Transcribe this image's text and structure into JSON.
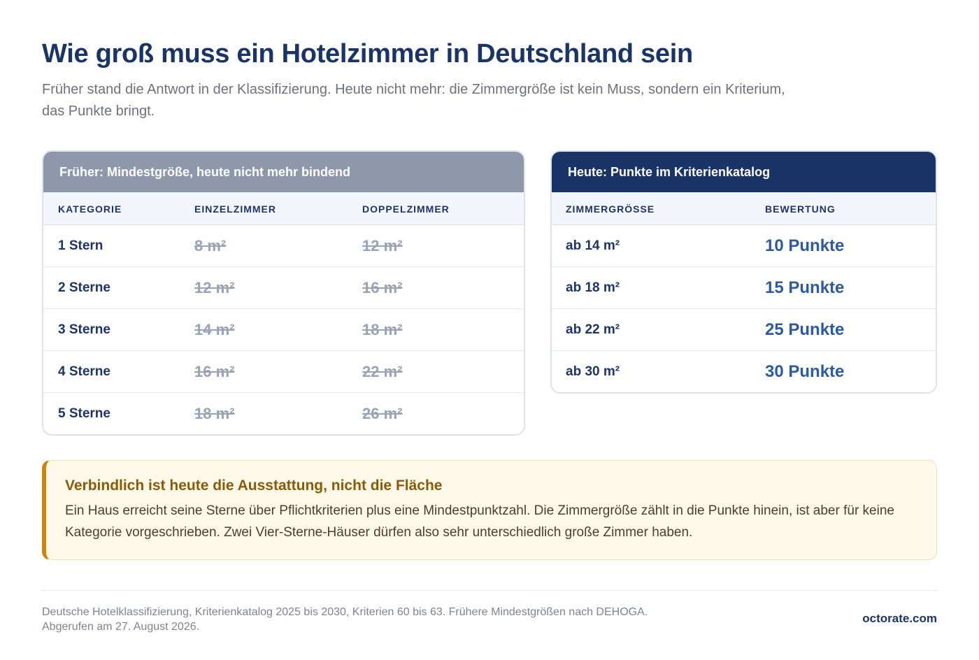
{
  "header": {
    "title": "Wie groß muss ein Hotelzimmer in Deutschland sein",
    "subtitle": "Früher stand die Antwort in der Klassifizierung. Heute nicht mehr: die Zimmergröße ist kein Muss, sondern ein Kriterium, das Punkte bringt."
  },
  "former_table": {
    "heading": "Früher: Mindestgröße, heute nicht mehr bindend",
    "columns": [
      "KATEGORIE",
      "EINZELZIMMER",
      "DOPPELZIMMER"
    ],
    "rows": [
      [
        "1 Stern",
        "8 m²",
        "12 m²"
      ],
      [
        "2 Sterne",
        "12 m²",
        "16 m²"
      ],
      [
        "3 Sterne",
        "14 m²",
        "18 m²"
      ],
      [
        "4 Sterne",
        "16 m²",
        "22 m²"
      ],
      [
        "5 Sterne",
        "18 m²",
        "26 m²"
      ]
    ]
  },
  "current_table": {
    "heading": "Heute: Punkte im Kriterienkatalog",
    "columns": [
      "ZIMMERGRÖSSE",
      "BEWERTUNG"
    ],
    "rows": [
      [
        "ab 14 m²",
        "10 Punkte"
      ],
      [
        "ab 18 m²",
        "15 Punkte"
      ],
      [
        "ab 22 m²",
        "25 Punkte"
      ],
      [
        "ab 30 m²",
        "30 Punkte"
      ]
    ]
  },
  "note": {
    "title": "Verbindlich ist heute die Ausstattung, nicht die Fläche",
    "text": "Ein Haus erreicht seine Sterne über Pflichtkriterien plus eine Mindestpunktzahl. Die Zimmergröße zählt in die Punkte hinein, ist aber für keine Kategorie vorgeschrieben. Zwei Vier-Sterne-Häuser dürfen also sehr unterschiedlich große Zimmer haben."
  },
  "footer": {
    "source_line1": "Deutsche Hotelklassifizierung, Kriterienkatalog 2025 bis 2030, Kriterien 60 bis 63. Frühere Mindestgrößen nach DEHOGA.",
    "source_line2": "Abgerufen am 27. August 2026.",
    "brand": "octorate.com"
  },
  "colors": {
    "title": "#1b3468",
    "former_header": "#8e98aa",
    "current_header": "#1b3468",
    "points": "#2d5aa5",
    "note_accent": "#c8860e",
    "note_background": "#fef8e8"
  }
}
